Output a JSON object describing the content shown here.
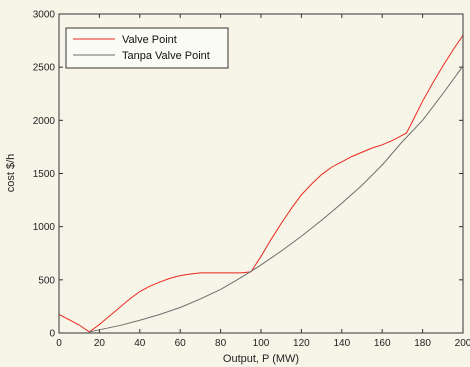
{
  "chart_data": {
    "type": "line",
    "xlabel": "Output, P (MW)",
    "ylabel": "cost $/h",
    "xlim": [
      0,
      200
    ],
    "ylim": [
      0,
      3000
    ],
    "x_ticks": [
      0,
      20,
      40,
      60,
      80,
      100,
      120,
      140,
      160,
      180,
      200
    ],
    "y_ticks": [
      0,
      500,
      1000,
      1500,
      2000,
      2500,
      3000
    ],
    "grid": false,
    "legend_position": "top-left",
    "series": [
      {
        "name": "Valve Point",
        "color": "#e8271e",
        "x": [
          0,
          5,
          10,
          15,
          20,
          25,
          30,
          35,
          40,
          45,
          50,
          55,
          60,
          65,
          70,
          75,
          80,
          85,
          90,
          95,
          100,
          105,
          110,
          115,
          120,
          125,
          130,
          135,
          140,
          145,
          150,
          155,
          160,
          165,
          170,
          172,
          175,
          180,
          185,
          190,
          195,
          200
        ],
        "y": [
          175,
          125,
          75,
          10,
          80,
          160,
          240,
          320,
          390,
          440,
          480,
          515,
          540,
          555,
          565,
          565,
          565,
          565,
          565,
          575,
          720,
          880,
          1030,
          1170,
          1300,
          1400,
          1490,
          1560,
          1610,
          1660,
          1700,
          1740,
          1770,
          1810,
          1860,
          1880,
          1990,
          2180,
          2350,
          2510,
          2660,
          2800
        ]
      },
      {
        "name": "Tanpa Valve Point",
        "color": "#6e6e6e",
        "x": [
          15,
          20,
          30,
          40,
          50,
          60,
          70,
          80,
          90,
          100,
          110,
          120,
          130,
          140,
          150,
          160,
          170,
          180,
          190,
          200
        ],
        "y": [
          10,
          30,
          70,
          120,
          175,
          240,
          320,
          410,
          520,
          640,
          770,
          910,
          1060,
          1220,
          1390,
          1580,
          1800,
          2000,
          2250,
          2510
        ]
      }
    ]
  }
}
